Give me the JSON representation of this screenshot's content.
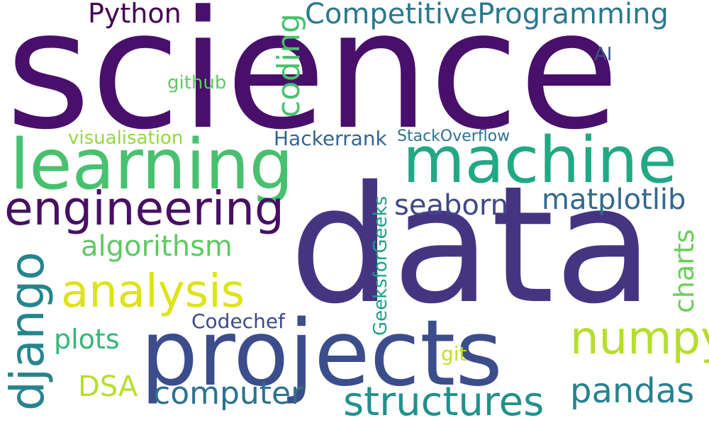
{
  "words": {
    "science": {
      "text": "science",
      "color": "#48106b"
    },
    "data": {
      "text": "data",
      "color": "#453581"
    },
    "projects": {
      "text": "projects",
      "color": "#3b4d8a"
    },
    "learning": {
      "text": "learning",
      "color": "#47c16e"
    },
    "machine": {
      "text": "machine",
      "color": "#22a884"
    },
    "engineering": {
      "text": "engineering",
      "color": "#471063"
    },
    "competitive": {
      "text": "CompetitiveProgramming",
      "color": "#2a788e"
    },
    "python": {
      "text": "Python",
      "color": "#440154"
    },
    "coding": {
      "text": "coding",
      "color": "#4ac16d"
    },
    "analysis": {
      "text": "analysis",
      "color": "#dde318"
    },
    "django": {
      "text": "django",
      "color": "#25858e"
    },
    "algorithsm": {
      "text": "algorithsm",
      "color": "#5ec962"
    },
    "numpy": {
      "text": "numpy",
      "color": "#b5de2b"
    },
    "matplotlib": {
      "text": "matplotlib",
      "color": "#31688e"
    },
    "seaborn": {
      "text": "seaborn",
      "color": "#3f4889"
    },
    "structures": {
      "text": "structures",
      "color": "#21918c"
    },
    "computer": {
      "text": "computer",
      "color": "#2c728e"
    },
    "pandas": {
      "text": "pandas",
      "color": "#26828e"
    },
    "charts": {
      "text": "charts",
      "color": "#6ccd5a"
    },
    "geeksforgeeks": {
      "text": "GeeksforGeeks",
      "color": "#1fa088"
    },
    "stackoverflow": {
      "text": "StackOverflow",
      "color": "#2c728e"
    },
    "hackerrank": {
      "text": "Hackerrank",
      "color": "#32648e"
    },
    "visualisation": {
      "text": "visualisation",
      "color": "#95d840"
    },
    "github": {
      "text": "github",
      "color": "#5ec962"
    },
    "ai": {
      "text": "AI",
      "color": "#3b528b"
    },
    "codechef": {
      "text": "Codechef",
      "color": "#3e4a89"
    },
    "plots": {
      "text": "plots",
      "color": "#35b779"
    },
    "dsa": {
      "text": "DSA",
      "color": "#b5de2b"
    },
    "git": {
      "text": "git",
      "color": "#c2df23"
    }
  }
}
